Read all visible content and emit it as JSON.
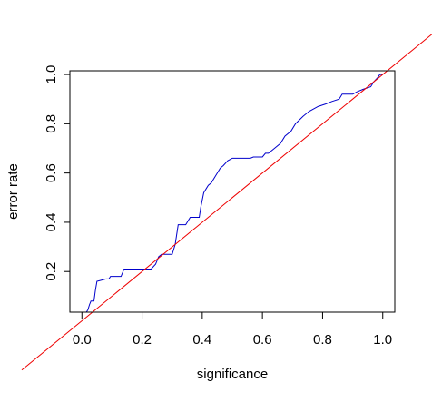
{
  "chart_data": {
    "type": "line",
    "title": "",
    "xlabel": "significance",
    "ylabel": "error rate",
    "xlim": [
      -0.04,
      1.04
    ],
    "ylim": [
      0.035,
      1.015
    ],
    "x_ticks": [
      0.0,
      0.2,
      0.4,
      0.6,
      0.8,
      1.0
    ],
    "x_tick_labels": [
      "0.0",
      "0.2",
      "0.4",
      "0.6",
      "0.8",
      "1.0"
    ],
    "y_ticks": [
      0.2,
      0.4,
      0.6,
      0.8,
      1.0
    ],
    "y_tick_labels": [
      "0.2",
      "0.4",
      "0.6",
      "0.8",
      "1.0"
    ],
    "grid": false,
    "legend": "none",
    "series": [
      {
        "color": "#0000cc",
        "points": [
          [
            0.015,
            0.035
          ],
          [
            0.02,
            0.045
          ],
          [
            0.025,
            0.065
          ],
          [
            0.03,
            0.08
          ],
          [
            0.04,
            0.08
          ],
          [
            0.045,
            0.125
          ],
          [
            0.05,
            0.16
          ],
          [
            0.065,
            0.165
          ],
          [
            0.08,
            0.17
          ],
          [
            0.09,
            0.17
          ],
          [
            0.095,
            0.18
          ],
          [
            0.13,
            0.18
          ],
          [
            0.14,
            0.21
          ],
          [
            0.23,
            0.21
          ],
          [
            0.245,
            0.23
          ],
          [
            0.255,
            0.26
          ],
          [
            0.265,
            0.27
          ],
          [
            0.3,
            0.27
          ],
          [
            0.31,
            0.31
          ],
          [
            0.32,
            0.39
          ],
          [
            0.345,
            0.39
          ],
          [
            0.36,
            0.42
          ],
          [
            0.39,
            0.42
          ],
          [
            0.395,
            0.46
          ],
          [
            0.405,
            0.52
          ],
          [
            0.42,
            0.55
          ],
          [
            0.43,
            0.56
          ],
          [
            0.445,
            0.59
          ],
          [
            0.46,
            0.62
          ],
          [
            0.47,
            0.63
          ],
          [
            0.485,
            0.65
          ],
          [
            0.5,
            0.66
          ],
          [
            0.56,
            0.66
          ],
          [
            0.57,
            0.665
          ],
          [
            0.6,
            0.665
          ],
          [
            0.61,
            0.68
          ],
          [
            0.62,
            0.68
          ],
          [
            0.64,
            0.7
          ],
          [
            0.66,
            0.72
          ],
          [
            0.675,
            0.75
          ],
          [
            0.695,
            0.77
          ],
          [
            0.71,
            0.8
          ],
          [
            0.735,
            0.83
          ],
          [
            0.755,
            0.85
          ],
          [
            0.785,
            0.87
          ],
          [
            0.81,
            0.88
          ],
          [
            0.83,
            0.89
          ],
          [
            0.855,
            0.9
          ],
          [
            0.865,
            0.92
          ],
          [
            0.9,
            0.92
          ],
          [
            0.915,
            0.93
          ],
          [
            0.935,
            0.94
          ],
          [
            0.96,
            0.95
          ],
          [
            0.97,
            0.97
          ],
          [
            0.985,
            0.99
          ],
          [
            0.99,
            1.0
          ],
          [
            1.0,
            1.0
          ]
        ]
      },
      {
        "color": "#ee0000",
        "points": [
          [
            -0.2,
            -0.2
          ],
          [
            1.2,
            1.2
          ]
        ]
      }
    ]
  }
}
